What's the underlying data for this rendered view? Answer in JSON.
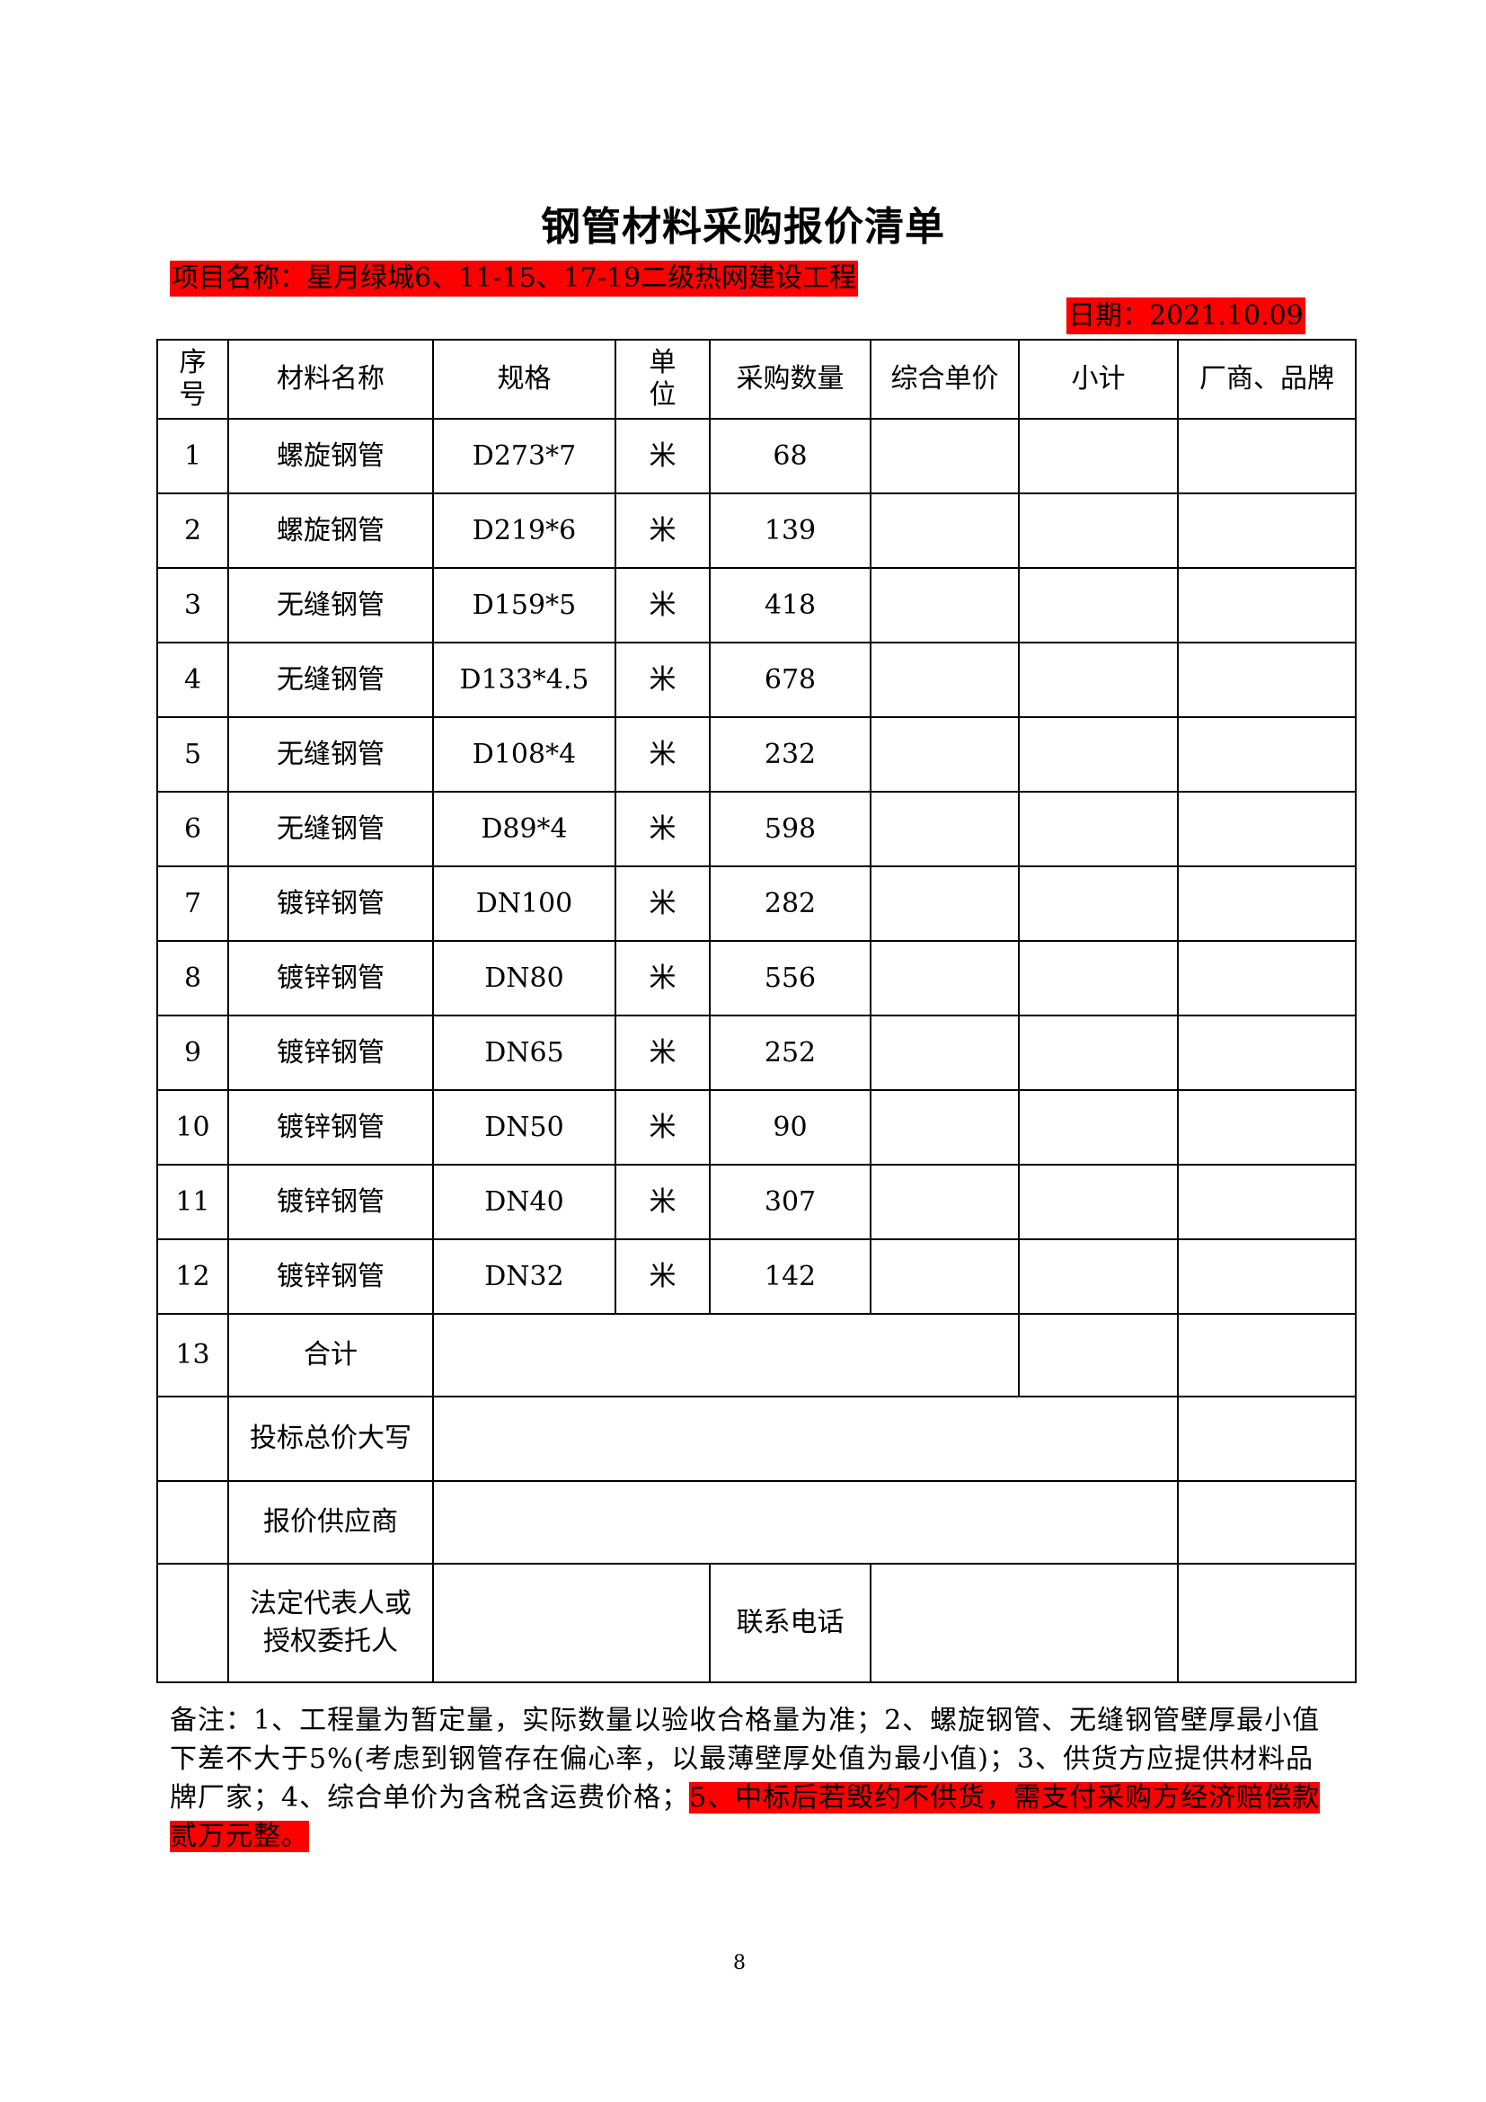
{
  "title": "钢管材料采购报价清单",
  "project": "项目名称：星月绿城6、11-15、17-19二级热网建设工程",
  "date": "日期：2021.10.09",
  "highlight_color": "#ff0000",
  "headers": [
    "序号",
    "材料名称",
    "规格",
    "单位",
    "采购数量",
    "综合单价",
    "小计",
    "厂商、品牌"
  ],
  "rows": [
    {
      "no": "1",
      "name": "螺旋钢管",
      "spec": "D273*7",
      "unit": "米",
      "qty": "68"
    },
    {
      "no": "2",
      "name": "螺旋钢管",
      "spec": "D219*6",
      "unit": "米",
      "qty": "139"
    },
    {
      "no": "3",
      "name": "无缝钢管",
      "spec": "D159*5",
      "unit": "米",
      "qty": "418"
    },
    {
      "no": "4",
      "name": "无缝钢管",
      "spec": "D133*4.5",
      "unit": "米",
      "qty": "678"
    },
    {
      "no": "5",
      "name": "无缝钢管",
      "spec": "D108*4",
      "unit": "米",
      "qty": "232"
    },
    {
      "no": "6",
      "name": "无缝钢管",
      "spec": "D89*4",
      "unit": "米",
      "qty": "598"
    },
    {
      "no": "7",
      "name": "镀锌钢管",
      "spec": "DN100",
      "unit": "米",
      "qty": "282"
    },
    {
      "no": "8",
      "name": "镀锌钢管",
      "spec": "DN80",
      "unit": "米",
      "qty": "556"
    },
    {
      "no": "9",
      "name": "镀锌钢管",
      "spec": "DN65",
      "unit": "米",
      "qty": "252"
    },
    {
      "no": "10",
      "name": "镀锌钢管",
      "spec": "DN50",
      "unit": "米",
      "qty": "90"
    },
    {
      "no": "11",
      "name": "镀锌钢管",
      "spec": "DN40",
      "unit": "米",
      "qty": "307"
    },
    {
      "no": "12",
      "name": "镀锌钢管",
      "spec": "DN32",
      "unit": "米",
      "qty": "142"
    }
  ],
  "total": {
    "no": "13",
    "label": "合计"
  },
  "bid_total_label": "投标总价大写",
  "supplier_label": "报价供应商",
  "rep_label": "法定代表人或授权委托人",
  "phone_label": "联系电话",
  "notes_plain": "备注：1、工程量为暂定量，实际数量以验收合格量为准；2、螺旋钢管、无缝钢管壁厚最小值下差不大于5%(考虑到钢管存在偏心率，以最薄壁厚处值为最小值)；3、供货方应提供材料品牌厂家；4、综合单价为含税含运费价格；",
  "notes_highlight": "5、中标后若毁约不供货，需支付采购方经济赔偿款贰万元整。",
  "page_number": "8"
}
